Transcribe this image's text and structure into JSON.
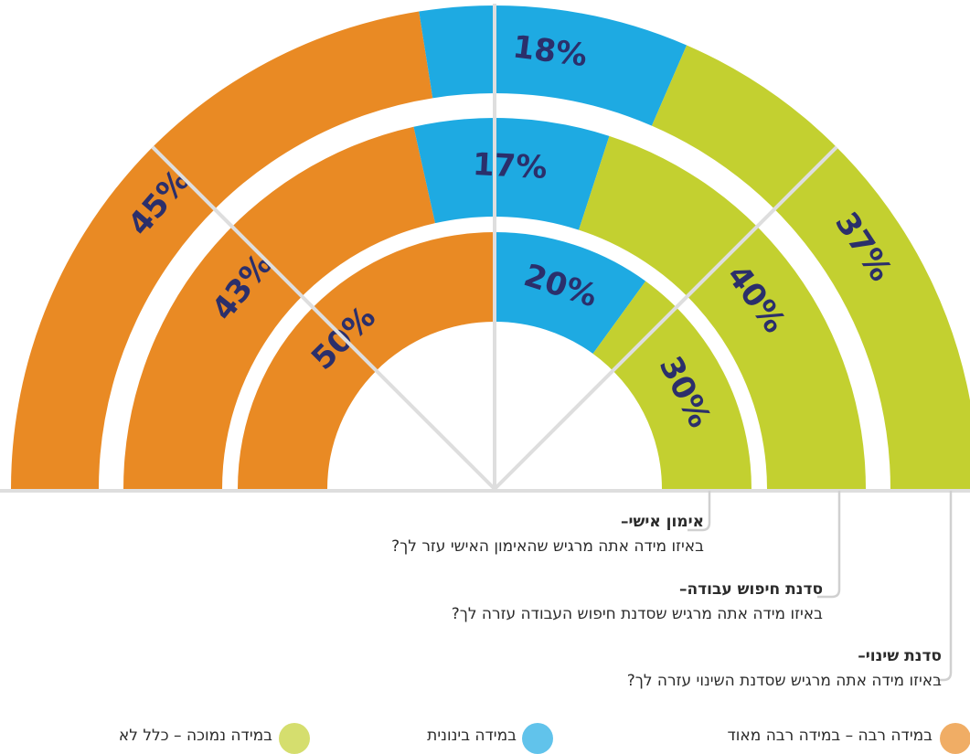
{
  "chart_data": {
    "type": "half-donut",
    "categories": [
      "אימון אישי–",
      "סדנת חיפוש עבודה–",
      "סדנת שינוי–"
    ],
    "questions": [
      "באיזו מידה אתה מרגיש שהאימון האישי עזר לך?",
      "באיזו מידה אתה מרגיש שסדנת חיפוש העבודה עזרה לך?",
      "באיזו מידה אתה מרגיש שסדנת השינוי עזרה לך?"
    ],
    "series": [
      {
        "name": "במידה רבה – במידה רבה מאוד",
        "color": "#e98a24",
        "values": [
          50,
          43,
          45
        ],
        "value_labels": [
          "50%",
          "43%",
          "45%"
        ]
      },
      {
        "name": "במידה בינונית",
        "color": "#1eaae2",
        "values": [
          20,
          17,
          18
        ],
        "value_labels": [
          "20%",
          "17%",
          "18%"
        ]
      },
      {
        "name": "במידה נמוכה – כלל לא",
        "color": "#c3d030",
        "values": [
          30,
          40,
          37
        ],
        "value_labels": [
          "30%",
          "40%",
          "37%"
        ]
      }
    ]
  }
}
